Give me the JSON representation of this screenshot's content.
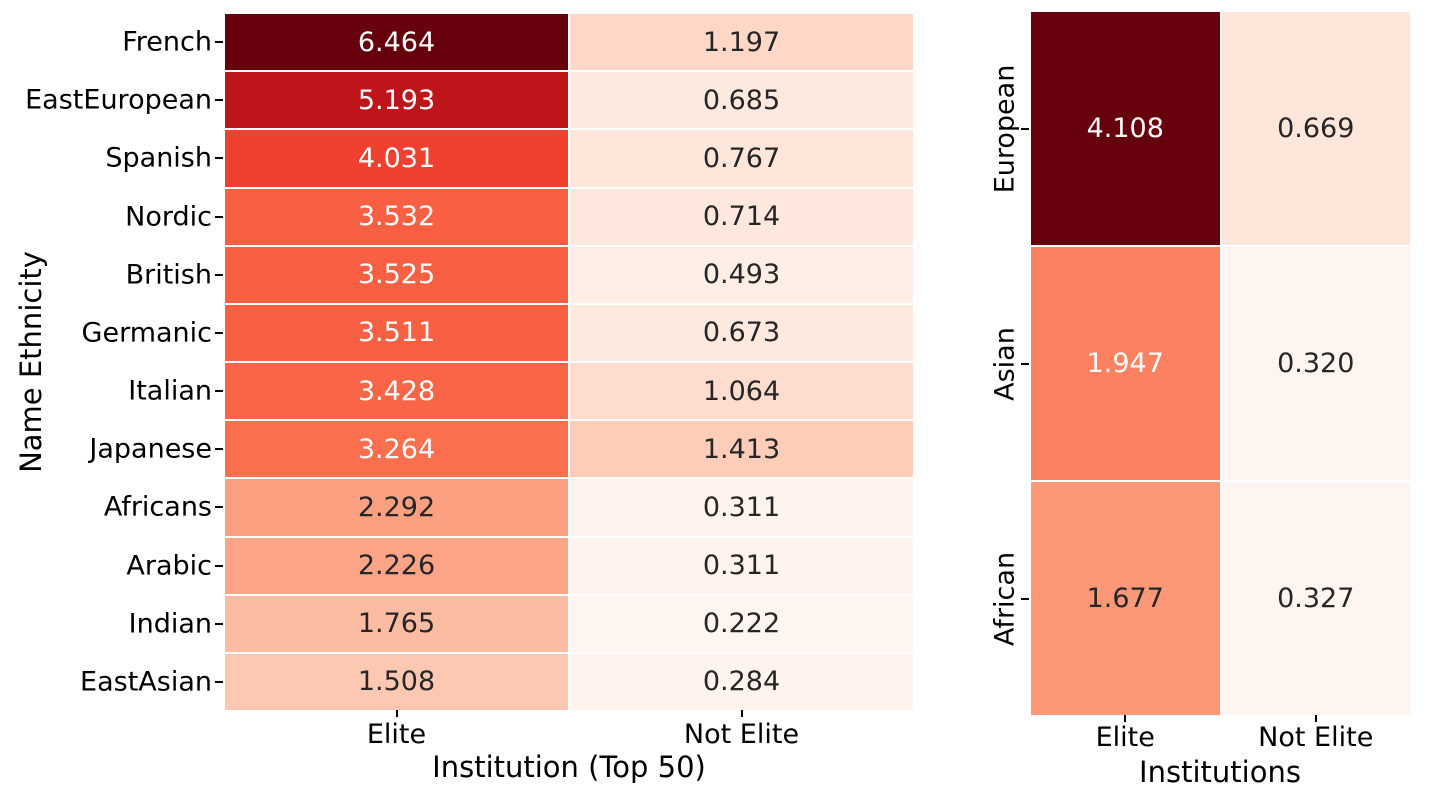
{
  "figure": {
    "background": "#ffffff",
    "palette_name": "Reds",
    "colormap_anchors": [
      "#fff5f0",
      "#fee0d2",
      "#fcbba1",
      "#fc9272",
      "#fb6a4a",
      "#ef3b2c",
      "#cb181d",
      "#a50f15",
      "#67000d"
    ],
    "annotation_text_dark": "#262626",
    "annotation_text_light": "#ffffff",
    "axis_text_color": "#000000"
  },
  "chart_data": [
    {
      "type": "heatmap",
      "title": "",
      "ylabel": "Name Ethnicity",
      "xlabel": "Institution (Top 50)",
      "columns": [
        "Elite",
        "Not Elite"
      ],
      "rows": [
        "French",
        "EastEuropean",
        "Spanish",
        "Nordic",
        "British",
        "Germanic",
        "Italian",
        "Japanese",
        "Africans",
        "Arabic",
        "Indian",
        "EastAsian"
      ],
      "values": [
        [
          6.464,
          1.197
        ],
        [
          5.193,
          0.685
        ],
        [
          4.031,
          0.767
        ],
        [
          3.532,
          0.714
        ],
        [
          3.525,
          0.493
        ],
        [
          3.511,
          0.673
        ],
        [
          3.428,
          1.064
        ],
        [
          3.264,
          1.413
        ],
        [
          2.292,
          0.311
        ],
        [
          2.226,
          0.311
        ],
        [
          1.765,
          0.222
        ],
        [
          1.508,
          0.284
        ]
      ],
      "vmin": 0.222,
      "vmax": 6.464,
      "annot_decimals": 3,
      "colormap": "Reds",
      "grid_lines": "white 2px between cells",
      "legend": "none"
    },
    {
      "type": "heatmap",
      "title": "",
      "ylabel": "",
      "xlabel": "Institutions",
      "columns": [
        "Elite",
        "Not Elite"
      ],
      "rows": [
        "European",
        "Asian",
        "African"
      ],
      "values": [
        [
          4.108,
          0.669
        ],
        [
          1.947,
          0.32
        ],
        [
          1.677,
          0.327
        ]
      ],
      "vmin": 0.32,
      "vmax": 4.108,
      "annot_decimals": 3,
      "colormap": "Reds",
      "grid_lines": "white 2px between cells",
      "legend": "none"
    }
  ]
}
